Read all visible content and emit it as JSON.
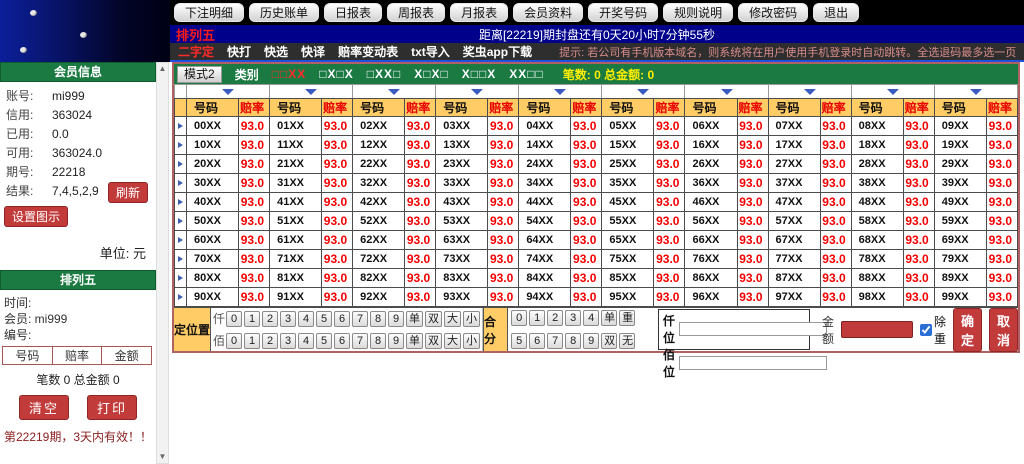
{
  "toolbar": {
    "buttons": [
      "下注明细",
      "历史账单",
      "日报表",
      "周报表",
      "月报表",
      "会员资料",
      "开奖号码",
      "规则说明",
      "修改密码",
      "退出"
    ]
  },
  "game_bar": {
    "title": "排列五",
    "countdown": "距离[22219]期封盘还有0天20小时7分钟55秒"
  },
  "menu_bar": {
    "items": [
      "二字定",
      "快打",
      "快选",
      "快译",
      "赔率变动表",
      "txt导入",
      "奖虫app下载"
    ],
    "active_index": 0,
    "tip": "提示: 若公司有手机版本域名，则系统将在用户使用手机登录时自动跳转。全选退码最多选一页，无法多页"
  },
  "sidebar": {
    "member_info": {
      "title": "会员信息",
      "rows": [
        {
          "label": "账号:",
          "value": "mi999"
        },
        {
          "label": "信用:",
          "value": "363024"
        },
        {
          "label": "已用:",
          "value": "0.0"
        },
        {
          "label": "可用:",
          "value": "363024.0"
        },
        {
          "label": "期号:",
          "value": "22218"
        },
        {
          "label": "结果:",
          "value": "7,4,5,2,9",
          "action": "刷新"
        }
      ],
      "set_icon_label": "设置图示",
      "unit_label": "单位: 元"
    },
    "bet_slip": {
      "title": "排列五",
      "time_label": "时间:",
      "member_label": "会员: mi999",
      "number_label": "编号:",
      "table_headers": [
        "号码",
        "赔率",
        "金额"
      ],
      "summary": "笔数 0 总金额 0",
      "clear_label": "清空",
      "print_label": "打印",
      "validity": "第22219期，3天内有效！！"
    }
  },
  "mode_bar": {
    "mode_label": "模式2",
    "category_label": "类别",
    "categories": [
      "□□XX",
      "□X□X",
      "□XX□",
      "X□X□",
      "X□□X",
      "XX□□"
    ],
    "active_index": 0,
    "summary": "笔数: 0 总金额: 0"
  },
  "odds_table": {
    "header": {
      "number": "号码",
      "odds": "赔率"
    },
    "rows": [
      [
        [
          "00XX",
          "93.0"
        ],
        [
          "01XX",
          "93.0"
        ],
        [
          "02XX",
          "93.0"
        ],
        [
          "03XX",
          "93.0"
        ],
        [
          "04XX",
          "93.0"
        ],
        [
          "05XX",
          "93.0"
        ],
        [
          "06XX",
          "93.0"
        ],
        [
          "07XX",
          "93.0"
        ],
        [
          "08XX",
          "93.0"
        ],
        [
          "09XX",
          "93.0"
        ]
      ],
      [
        [
          "10XX",
          "93.0"
        ],
        [
          "11XX",
          "93.0"
        ],
        [
          "12XX",
          "93.0"
        ],
        [
          "13XX",
          "93.0"
        ],
        [
          "14XX",
          "93.0"
        ],
        [
          "15XX",
          "93.0"
        ],
        [
          "16XX",
          "93.0"
        ],
        [
          "17XX",
          "93.0"
        ],
        [
          "18XX",
          "93.0"
        ],
        [
          "19XX",
          "93.0"
        ]
      ],
      [
        [
          "20XX",
          "93.0"
        ],
        [
          "21XX",
          "93.0"
        ],
        [
          "22XX",
          "93.0"
        ],
        [
          "23XX",
          "93.0"
        ],
        [
          "24XX",
          "93.0"
        ],
        [
          "25XX",
          "93.0"
        ],
        [
          "26XX",
          "93.0"
        ],
        [
          "27XX",
          "93.0"
        ],
        [
          "28XX",
          "93.0"
        ],
        [
          "29XX",
          "93.0"
        ]
      ],
      [
        [
          "30XX",
          "93.0"
        ],
        [
          "31XX",
          "93.0"
        ],
        [
          "32XX",
          "93.0"
        ],
        [
          "33XX",
          "93.0"
        ],
        [
          "34XX",
          "93.0"
        ],
        [
          "35XX",
          "93.0"
        ],
        [
          "36XX",
          "93.0"
        ],
        [
          "37XX",
          "93.0"
        ],
        [
          "38XX",
          "93.0"
        ],
        [
          "39XX",
          "93.0"
        ]
      ],
      [
        [
          "40XX",
          "93.0"
        ],
        [
          "41XX",
          "93.0"
        ],
        [
          "42XX",
          "93.0"
        ],
        [
          "43XX",
          "93.0"
        ],
        [
          "44XX",
          "93.0"
        ],
        [
          "45XX",
          "93.0"
        ],
        [
          "46XX",
          "93.0"
        ],
        [
          "47XX",
          "93.0"
        ],
        [
          "48XX",
          "93.0"
        ],
        [
          "49XX",
          "93.0"
        ]
      ],
      [
        [
          "50XX",
          "93.0"
        ],
        [
          "51XX",
          "93.0"
        ],
        [
          "52XX",
          "93.0"
        ],
        [
          "53XX",
          "93.0"
        ],
        [
          "54XX",
          "93.0"
        ],
        [
          "55XX",
          "93.0"
        ],
        [
          "56XX",
          "93.0"
        ],
        [
          "57XX",
          "93.0"
        ],
        [
          "58XX",
          "93.0"
        ],
        [
          "59XX",
          "93.0"
        ]
      ],
      [
        [
          "60XX",
          "93.0"
        ],
        [
          "61XX",
          "93.0"
        ],
        [
          "62XX",
          "93.0"
        ],
        [
          "63XX",
          "93.0"
        ],
        [
          "64XX",
          "93.0"
        ],
        [
          "65XX",
          "93.0"
        ],
        [
          "66XX",
          "93.0"
        ],
        [
          "67XX",
          "93.0"
        ],
        [
          "68XX",
          "93.0"
        ],
        [
          "69XX",
          "93.0"
        ]
      ],
      [
        [
          "70XX",
          "93.0"
        ],
        [
          "71XX",
          "93.0"
        ],
        [
          "72XX",
          "93.0"
        ],
        [
          "73XX",
          "93.0"
        ],
        [
          "74XX",
          "93.0"
        ],
        [
          "75XX",
          "93.0"
        ],
        [
          "76XX",
          "93.0"
        ],
        [
          "77XX",
          "93.0"
        ],
        [
          "78XX",
          "93.0"
        ],
        [
          "79XX",
          "93.0"
        ]
      ],
      [
        [
          "80XX",
          "93.0"
        ],
        [
          "81XX",
          "93.0"
        ],
        [
          "82XX",
          "93.0"
        ],
        [
          "83XX",
          "93.0"
        ],
        [
          "84XX",
          "93.0"
        ],
        [
          "85XX",
          "93.0"
        ],
        [
          "86XX",
          "93.0"
        ],
        [
          "87XX",
          "93.0"
        ],
        [
          "88XX",
          "93.0"
        ],
        [
          "89XX",
          "93.0"
        ]
      ],
      [
        [
          "90XX",
          "93.0"
        ],
        [
          "91XX",
          "93.0"
        ],
        [
          "92XX",
          "93.0"
        ],
        [
          "93XX",
          "93.0"
        ],
        [
          "94XX",
          "93.0"
        ],
        [
          "95XX",
          "93.0"
        ],
        [
          "96XX",
          "93.0"
        ],
        [
          "97XX",
          "93.0"
        ],
        [
          "98XX",
          "93.0"
        ],
        [
          "99XX",
          "93.0"
        ]
      ]
    ]
  },
  "position_panel": {
    "title": "定位置",
    "rows": [
      {
        "label": "仟",
        "buttons": [
          "0",
          "1",
          "2",
          "3",
          "4",
          "5",
          "6",
          "7",
          "8",
          "9",
          "单",
          "双",
          "大",
          "小"
        ]
      },
      {
        "label": "佰",
        "buttons": [
          "0",
          "1",
          "2",
          "3",
          "4",
          "5",
          "6",
          "7",
          "8",
          "9",
          "单",
          "双",
          "大",
          "小"
        ]
      }
    ]
  },
  "sum_panel": {
    "title": "合分",
    "rows": [
      [
        "0",
        "1",
        "2",
        "3",
        "4",
        "单",
        "重"
      ],
      [
        "5",
        "6",
        "7",
        "8",
        "9",
        "双",
        "无"
      ]
    ]
  },
  "input_panel": {
    "fields": [
      {
        "label": "仟位"
      },
      {
        "label": "佰位"
      }
    ]
  },
  "action_panel": {
    "amount_label": "金额",
    "dedupe_label": "除重",
    "dedupe_checked": true,
    "confirm_label": "确定",
    "cancel_label": "取消"
  }
}
